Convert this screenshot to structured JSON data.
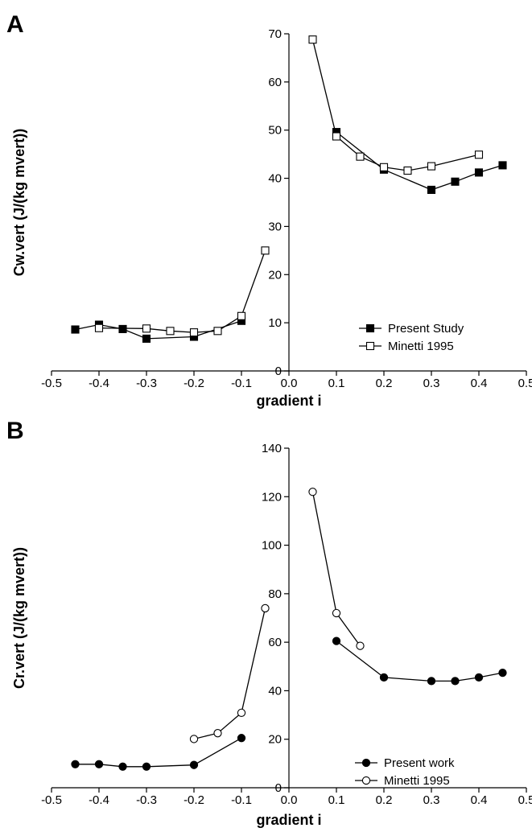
{
  "chart_data": [
    {
      "panel": "A",
      "type": "line",
      "xlabel": "gradient i",
      "ylabel": "Cw.vert (J/(kg mvert))",
      "xlim": [
        -0.5,
        0.5
      ],
      "ylim": [
        0,
        70
      ],
      "xticks": [
        -0.5,
        -0.4,
        -0.3,
        -0.2,
        -0.1,
        0.0,
        0.1,
        0.2,
        0.3,
        0.4,
        0.5
      ],
      "xtick_labels": [
        "-0.5",
        "-0.4",
        "-0.3",
        "-0.2",
        "-0.1",
        "0.0",
        "0.1",
        "0.2",
        "0.3",
        "0.4",
        "0.5"
      ],
      "yticks": [
        0,
        10,
        20,
        30,
        40,
        50,
        60,
        70
      ],
      "ytick_labels": [
        "0",
        "10",
        "20",
        "30",
        "40",
        "50",
        "60",
        "70"
      ],
      "legend_position": "bottom-right",
      "series": [
        {
          "name": "Present Study",
          "marker": "filled-square",
          "segments": [
            [
              [
                -0.45,
                8.6
              ],
              [
                -0.4,
                9.6
              ],
              [
                -0.35,
                8.7
              ],
              [
                -0.3,
                6.7
              ],
              [
                -0.2,
                7.1
              ],
              [
                -0.1,
                10.4
              ]
            ],
            [
              [
                0.1,
                49.6
              ],
              [
                0.2,
                41.8
              ],
              [
                0.3,
                37.6
              ],
              [
                0.35,
                39.3
              ],
              [
                0.4,
                41.2
              ],
              [
                0.45,
                42.7
              ]
            ]
          ]
        },
        {
          "name": "Minetti 1995",
          "marker": "open-square",
          "segments": [
            [
              [
                -0.4,
                8.9
              ],
              [
                -0.3,
                8.8
              ],
              [
                -0.25,
                8.3
              ],
              [
                -0.2,
                8.0
              ],
              [
                -0.15,
                8.3
              ],
              [
                -0.1,
                11.4
              ],
              [
                -0.05,
                25.0
              ]
            ],
            [
              [
                0.05,
                68.8
              ],
              [
                0.1,
                48.7
              ],
              [
                0.15,
                44.5
              ],
              [
                0.2,
                42.3
              ],
              [
                0.25,
                41.6
              ],
              [
                0.3,
                42.5
              ],
              [
                0.4,
                44.9
              ]
            ]
          ]
        }
      ]
    },
    {
      "panel": "B",
      "type": "line",
      "xlabel": "gradient i",
      "ylabel": "Cr.vert (J/(kg mvert))",
      "xlim": [
        -0.5,
        0.5
      ],
      "ylim": [
        0,
        140
      ],
      "xticks": [
        -0.5,
        -0.4,
        -0.3,
        -0.2,
        -0.1,
        0.0,
        0.1,
        0.2,
        0.3,
        0.4,
        0.5
      ],
      "xtick_labels": [
        "-0.5",
        "-0.4",
        "-0.3",
        "-0.2",
        "-0.1",
        "0.0",
        "0.1",
        "0.2",
        "0.3",
        "0.4",
        "0.5"
      ],
      "yticks": [
        0,
        20,
        40,
        60,
        80,
        100,
        120,
        140
      ],
      "ytick_labels": [
        "0",
        "20",
        "40",
        "60",
        "80",
        "100",
        "120",
        "140"
      ],
      "legend_position": "bottom-right",
      "series": [
        {
          "name": "Present work",
          "marker": "filled-circle",
          "segments": [
            [
              [
                -0.45,
                9.7
              ],
              [
                -0.4,
                9.7
              ],
              [
                -0.35,
                8.7
              ],
              [
                -0.3,
                8.7
              ],
              [
                -0.2,
                9.4
              ],
              [
                -0.1,
                20.5
              ]
            ],
            [
              [
                0.1,
                60.5
              ],
              [
                0.2,
                45.5
              ],
              [
                0.3,
                44.0
              ],
              [
                0.35,
                44.0
              ],
              [
                0.4,
                45.5
              ],
              [
                0.45,
                47.4
              ]
            ]
          ]
        },
        {
          "name": "Minetti 1995",
          "marker": "open-circle",
          "segments": [
            [
              [
                -0.2,
                20.1
              ],
              [
                -0.15,
                22.5
              ],
              [
                -0.1,
                30.9
              ],
              [
                -0.05,
                74.0
              ]
            ],
            [
              [
                0.05,
                122.0
              ],
              [
                0.1,
                72.0
              ],
              [
                0.15,
                58.5
              ]
            ]
          ]
        }
      ]
    }
  ]
}
